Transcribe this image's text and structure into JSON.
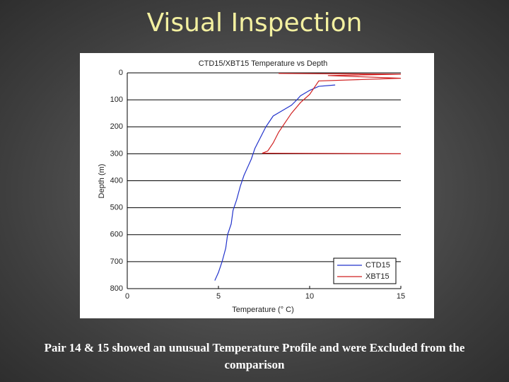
{
  "slide_title": "Visual Inspection",
  "caption": "Pair 14 & 15 showed an unusual Temperature Profile and were Excluded from the comparison",
  "chart_data": {
    "type": "line",
    "title": "CTD15/XBT15 Temperature vs Depth",
    "x_label": "Temperature (° C)",
    "y_label": "Depth (m)",
    "xlim": [
      0,
      15
    ],
    "xticks": [
      0,
      5,
      10,
      15
    ],
    "ylim": [
      0,
      800
    ],
    "yticks": [
      0,
      100,
      200,
      300,
      400,
      500,
      600,
      700,
      800
    ],
    "y_inverted": true,
    "grid": true,
    "legend": "lower right",
    "series": [
      {
        "name": "CTD15",
        "color": "#2233cc",
        "x": [
          11.4,
          10.5,
          10,
          9.5,
          9.3,
          9,
          8.5,
          8,
          7.8,
          7.6,
          7.3,
          7,
          6.8,
          6.6,
          6.4,
          6.2,
          6,
          5.8,
          5.7,
          5.5,
          5.4,
          5.2,
          5,
          4.8
        ],
        "values": [
          45,
          50,
          65,
          85,
          100,
          120,
          140,
          160,
          180,
          200,
          240,
          280,
          320,
          350,
          380,
          420,
          470,
          510,
          560,
          600,
          650,
          700,
          740,
          770
        ]
      },
      {
        "name": "XBT15",
        "color": "#d02020",
        "x": [
          8.3,
          15,
          11,
          15,
          10.5,
          10.3,
          10,
          9.5,
          9,
          8.6,
          8.3,
          8,
          7.7,
          7.4,
          15
        ],
        "values": [
          2,
          5,
          10,
          20,
          30,
          50,
          80,
          110,
          150,
          190,
          220,
          260,
          290,
          298,
          300
        ]
      }
    ]
  }
}
